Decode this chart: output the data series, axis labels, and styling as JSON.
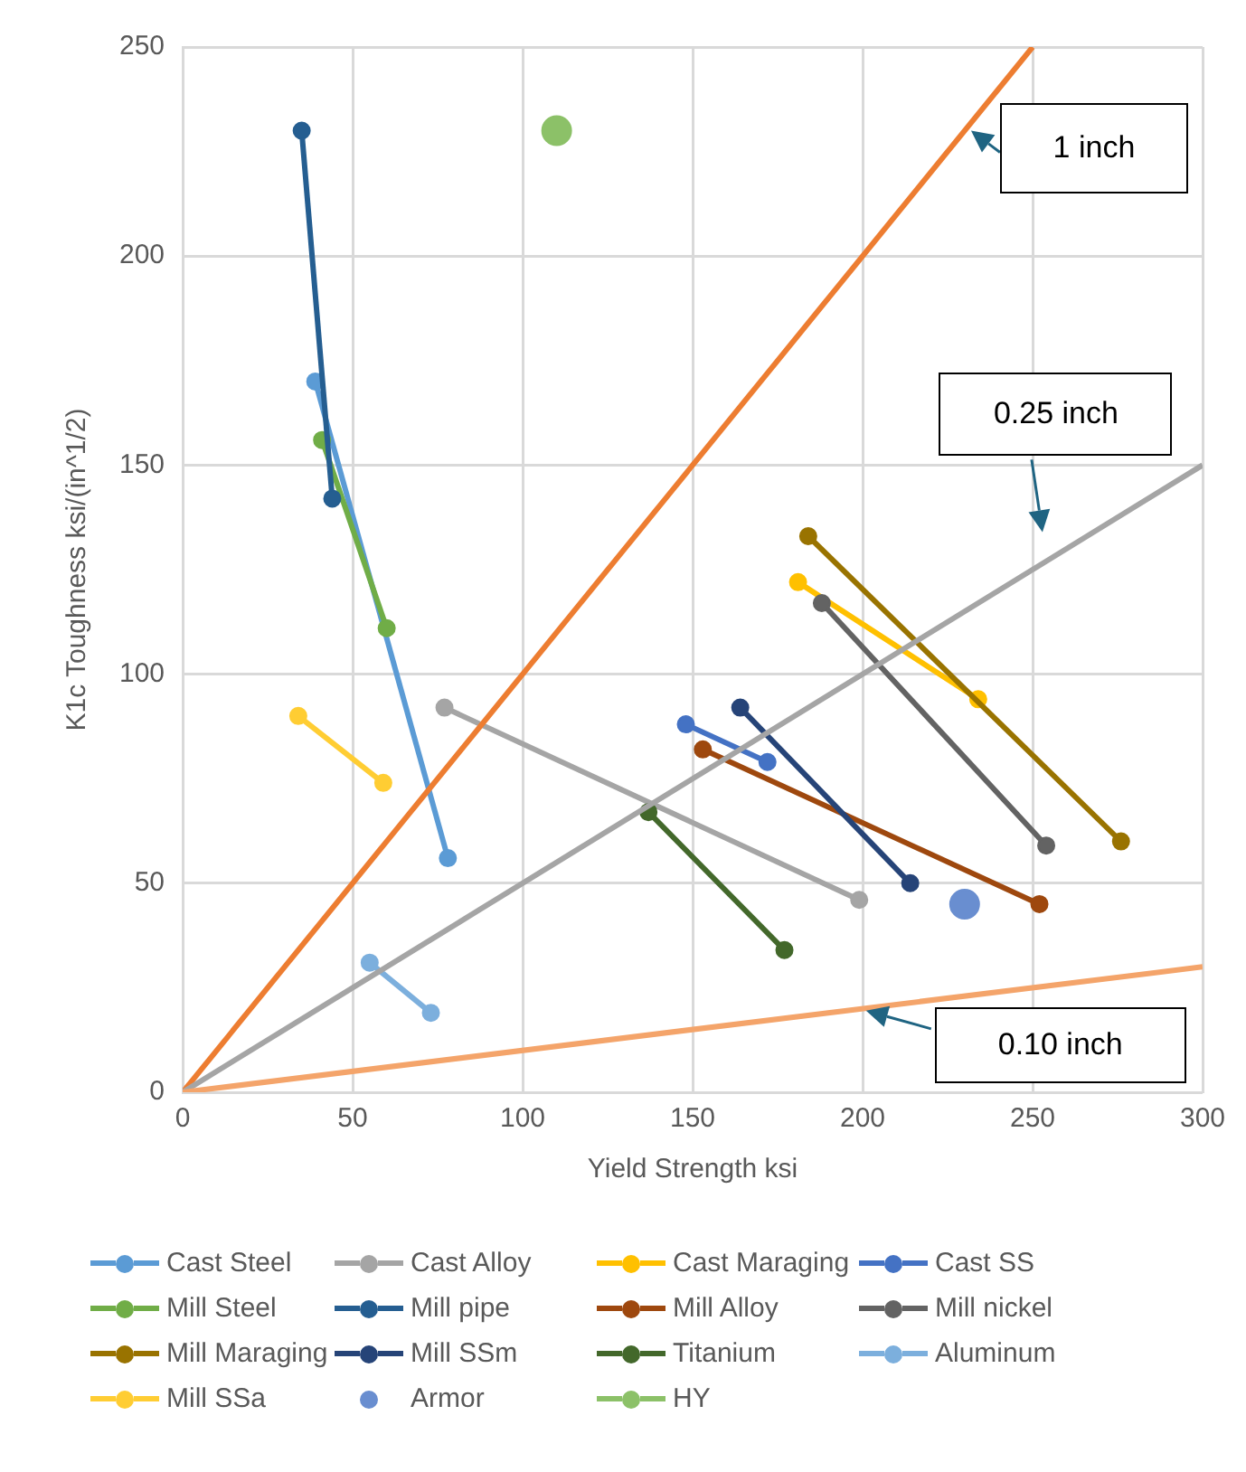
{
  "chart_data": {
    "type": "line",
    "xlabel": "Yield Strength ksi",
    "ylabel": "K1c Toughness ksi/(in^1/2)",
    "xlim": [
      0,
      300
    ],
    "xticks": [
      0,
      50,
      100,
      150,
      200,
      250,
      300
    ],
    "ylim": [
      0,
      250
    ],
    "yticks": [
      0,
      50,
      100,
      150,
      200,
      250
    ],
    "grid": true,
    "legend": "bottom",
    "marker": "circle",
    "series": [
      {
        "name": "Cast Steel",
        "color": "#5b9bd5",
        "x": [
          39,
          78
        ],
        "values": [
          170,
          56
        ]
      },
      {
        "name": "Cast Alloy",
        "color": "#a5a5a5",
        "x": [
          77,
          199
        ],
        "values": [
          92,
          46
        ]
      },
      {
        "name": "Cast Maraging",
        "color": "#ffc000",
        "x": [
          181,
          234
        ],
        "values": [
          122,
          94
        ]
      },
      {
        "name": "Cast SS",
        "color": "#4472c4",
        "x": [
          148,
          172
        ],
        "values": [
          88,
          79
        ]
      },
      {
        "name": "Mill Steel",
        "color": "#70ad47",
        "x": [
          41,
          60
        ],
        "values": [
          156,
          111
        ]
      },
      {
        "name": "Mill pipe",
        "color": "#255e91",
        "x": [
          35,
          44
        ],
        "values": [
          230,
          142
        ]
      },
      {
        "name": "Mill Alloy",
        "color": "#9e480e",
        "x": [
          153,
          252
        ],
        "values": [
          82,
          45
        ]
      },
      {
        "name": "Mill nickel",
        "color": "#636363",
        "x": [
          188,
          254
        ],
        "values": [
          117,
          59
        ]
      },
      {
        "name": "Mill Maraging",
        "color": "#997300",
        "x": [
          184,
          276
        ],
        "values": [
          133,
          60
        ]
      },
      {
        "name": "Mill SSm",
        "color": "#264478",
        "x": [
          164,
          214
        ],
        "values": [
          92,
          50
        ]
      },
      {
        "name": "Titanium",
        "color": "#43682b",
        "x": [
          137,
          177
        ],
        "values": [
          67,
          34
        ]
      },
      {
        "name": "Aluminum",
        "color": "#7cafdd",
        "x": [
          55,
          73
        ],
        "values": [
          31,
          19
        ]
      },
      {
        "name": "Mill SSa",
        "color": "#ffcd33",
        "x": [
          34,
          59
        ],
        "values": [
          90,
          74
        ]
      },
      {
        "name": "Armor",
        "color": "#698ed0",
        "type": "scatter",
        "x": [
          230
        ],
        "values": [
          45
        ]
      },
      {
        "name": "HY",
        "color": "#8cc168",
        "x": [
          110
        ],
        "values": [
          230
        ]
      },
      {
        "color": "#ed7d31",
        "marker": "none",
        "x": [
          0,
          250
        ],
        "values": [
          0,
          250
        ]
      },
      {
        "color": "#a5a5a5",
        "marker": "none",
        "x": [
          0,
          300
        ],
        "values": [
          0,
          150
        ]
      },
      {
        "color": "#f4a46a",
        "marker": "none",
        "x": [
          0,
          300
        ],
        "values": [
          0,
          30
        ]
      }
    ],
    "annotations": [
      "1 inch",
      "0.25 inch",
      "0.10 inch"
    ]
  }
}
